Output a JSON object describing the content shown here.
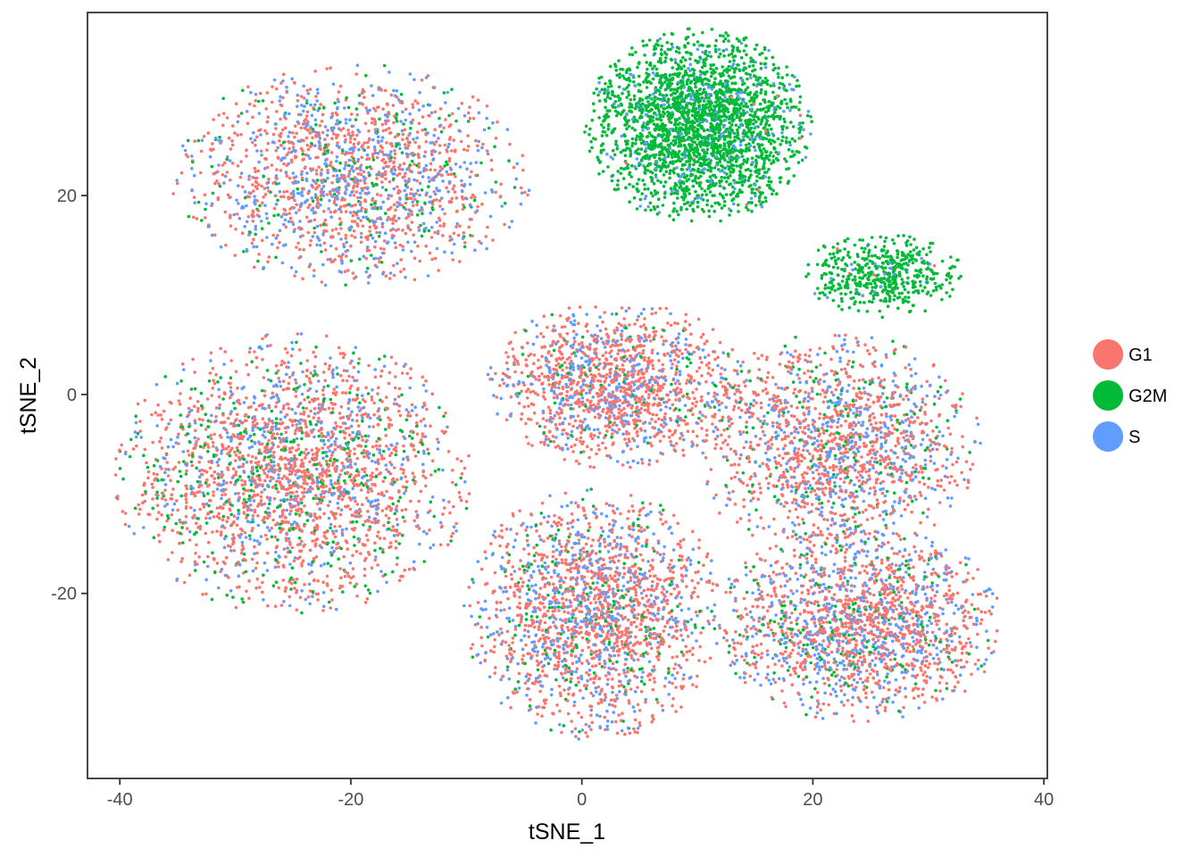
{
  "chart_data": {
    "type": "scatter",
    "title": "",
    "xlabel": "tSNE_1",
    "ylabel": "tSNE_2",
    "xlim": [
      -42.8,
      40.3
    ],
    "ylim": [
      -38.6,
      38.4
    ],
    "x_ticks": [
      "-40",
      "-20",
      "0",
      "20",
      "40"
    ],
    "x_tick_values": [
      -40,
      -20,
      0,
      20,
      40
    ],
    "y_ticks": [
      "-20",
      "0",
      "20"
    ],
    "y_tick_values": [
      -20,
      0,
      20
    ],
    "grid": false,
    "legend_position": "right",
    "series": [
      {
        "name": "G1",
        "color": "#F8766D"
      },
      {
        "name": "G2M",
        "color": "#00BA38"
      },
      {
        "name": "S",
        "color": "#619CFF"
      }
    ],
    "clusters": [
      {
        "label": "upper-left",
        "center": [
          -20,
          22
        ],
        "spread": [
          11,
          8
        ],
        "points": 1700,
        "mix": [
          0.55,
          0.1,
          0.35
        ]
      },
      {
        "label": "left",
        "center": [
          -25,
          -8
        ],
        "spread": [
          11,
          10
        ],
        "points": 2400,
        "mix": [
          0.6,
          0.17,
          0.23
        ]
      },
      {
        "label": "center",
        "center": [
          3,
          1
        ],
        "spread": [
          8,
          6
        ],
        "points": 1400,
        "mix": [
          0.65,
          0.07,
          0.28
        ]
      },
      {
        "label": "lower-center",
        "center": [
          1,
          -22
        ],
        "spread": [
          8,
          9
        ],
        "points": 1900,
        "mix": [
          0.6,
          0.1,
          0.3
        ]
      },
      {
        "label": "right",
        "center": [
          22,
          -5
        ],
        "spread": [
          9,
          8
        ],
        "points": 1600,
        "mix": [
          0.6,
          0.1,
          0.3
        ]
      },
      {
        "label": "lower-right",
        "center": [
          24,
          -23
        ],
        "spread": [
          9,
          7
        ],
        "points": 1800,
        "mix": [
          0.58,
          0.1,
          0.32
        ]
      },
      {
        "label": "g2m-top",
        "center": [
          10,
          27
        ],
        "spread": [
          7,
          7
        ],
        "points": 2500,
        "mix": [
          0.01,
          0.87,
          0.12
        ]
      },
      {
        "label": "g2m-branch",
        "center": [
          26,
          12
        ],
        "spread": [
          5,
          3
        ],
        "points": 500,
        "mix": [
          0.01,
          0.94,
          0.05
        ]
      }
    ]
  }
}
